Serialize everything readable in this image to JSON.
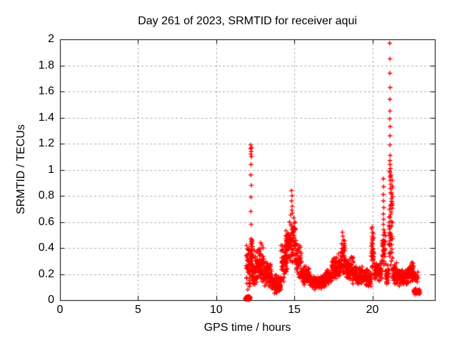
{
  "window": {
    "background": "#ffffff"
  },
  "chart_data": {
    "type": "scatter",
    "title": "Day 261 of 2023, SRMTID for receiver aqui",
    "xlabel": "GPS time / hours",
    "ylabel": "SRMTID / TECUs",
    "xlim": [
      0,
      24
    ],
    "ylim": [
      0,
      2
    ],
    "grid": true,
    "legend": "none",
    "marker": "plus",
    "marker_color": "#ff0000",
    "grid_color": "#b0b0b0",
    "border_color": "#000000",
    "x_ticks": {
      "values": [
        0,
        5,
        10,
        15,
        20
      ],
      "labels": [
        "0",
        "5",
        "10",
        "15",
        "20"
      ]
    },
    "y_ticks": {
      "values": [
        0,
        0.2,
        0.4,
        0.6,
        0.8,
        1,
        1.2,
        1.4,
        1.6,
        1.8,
        2
      ],
      "labels": [
        "0",
        "0.2",
        "0.4",
        "0.6",
        "0.8",
        "1",
        "1.2",
        "1.4",
        "1.6",
        "1.8",
        "2"
      ]
    },
    "data_time_range_hours": [
      11.87,
      23.05
    ],
    "prng_seed": 20230261,
    "spike_points": [
      [
        12.22,
        1.19
      ],
      [
        12.26,
        1.17
      ],
      [
        12.21,
        1.16
      ],
      [
        12.24,
        1.14
      ],
      [
        12.22,
        1.12
      ],
      [
        12.26,
        1.1
      ],
      [
        12.23,
        1.04
      ],
      [
        12.22,
        0.96
      ],
      [
        12.25,
        0.88
      ],
      [
        12.23,
        0.79
      ],
      [
        12.22,
        0.68
      ],
      [
        12.24,
        0.58
      ],
      [
        12.23,
        0.47
      ],
      [
        12.26,
        0.41
      ],
      [
        12.2,
        0.34
      ],
      [
        14.82,
        0.84
      ],
      [
        14.86,
        0.8
      ],
      [
        14.83,
        0.76
      ],
      [
        14.87,
        0.72
      ],
      [
        14.84,
        0.69
      ],
      [
        14.97,
        0.63
      ],
      [
        15.01,
        0.59
      ],
      [
        14.99,
        0.55
      ],
      [
        18.08,
        0.52
      ],
      [
        18.11,
        0.49
      ],
      [
        18.14,
        0.46
      ],
      [
        19.99,
        0.56
      ],
      [
        20.01,
        0.52
      ],
      [
        20.0,
        0.47
      ],
      [
        20.02,
        0.43
      ],
      [
        20.7,
        0.93
      ],
      [
        20.72,
        0.87
      ],
      [
        20.7,
        0.81
      ],
      [
        20.71,
        0.76
      ],
      [
        20.73,
        0.71
      ],
      [
        20.7,
        0.66
      ],
      [
        20.72,
        0.62
      ],
      [
        20.7,
        0.58
      ],
      [
        20.73,
        0.54
      ],
      [
        20.71,
        0.5
      ],
      [
        20.72,
        0.46
      ],
      [
        20.7,
        0.42
      ],
      [
        21.11,
        1.97
      ],
      [
        21.13,
        1.85
      ],
      [
        21.12,
        1.74
      ],
      [
        21.14,
        1.63
      ],
      [
        21.12,
        1.54
      ],
      [
        21.13,
        1.45
      ],
      [
        21.11,
        1.39
      ],
      [
        21.14,
        1.33
      ],
      [
        21.13,
        1.26
      ],
      [
        21.12,
        1.19
      ],
      [
        21.14,
        1.11
      ],
      [
        21.12,
        1.07
      ],
      [
        21.13,
        1.04
      ],
      [
        21.15,
        1.01
      ],
      [
        21.12,
        0.98
      ],
      [
        21.14,
        0.95
      ],
      [
        21.13,
        0.92
      ],
      [
        22.52,
        0.29
      ],
      [
        12.85,
        0.44
      ],
      [
        13.0,
        0.4
      ]
    ],
    "dense_band_segments": [
      [
        11.87,
        12.18,
        0.003,
        0.03,
        45
      ],
      [
        11.92,
        12.18,
        0.06,
        0.46,
        40
      ],
      [
        12.18,
        12.33,
        0.28,
        0.5,
        14
      ],
      [
        12.2,
        12.65,
        0.1,
        0.4,
        65
      ],
      [
        12.65,
        13.05,
        0.12,
        0.43,
        60
      ],
      [
        13.05,
        13.55,
        0.08,
        0.3,
        70
      ],
      [
        13.55,
        14.15,
        0.05,
        0.21,
        80
      ],
      [
        14.15,
        14.55,
        0.12,
        0.47,
        60
      ],
      [
        14.45,
        14.75,
        0.2,
        0.64,
        48
      ],
      [
        14.75,
        15.1,
        0.24,
        0.68,
        55
      ],
      [
        15.1,
        15.45,
        0.14,
        0.44,
        48
      ],
      [
        15.45,
        16.0,
        0.1,
        0.27,
        75
      ],
      [
        16.0,
        16.95,
        0.08,
        0.2,
        120
      ],
      [
        16.95,
        17.4,
        0.1,
        0.25,
        60
      ],
      [
        17.4,
        17.78,
        0.12,
        0.34,
        50
      ],
      [
        17.78,
        18.02,
        0.14,
        0.4,
        35
      ],
      [
        18.02,
        18.28,
        0.18,
        0.5,
        45
      ],
      [
        18.28,
        18.85,
        0.12,
        0.36,
        70
      ],
      [
        18.85,
        19.45,
        0.1,
        0.28,
        75
      ],
      [
        19.45,
        19.92,
        0.1,
        0.25,
        55
      ],
      [
        19.92,
        20.1,
        0.17,
        0.56,
        30
      ],
      [
        20.1,
        20.62,
        0.13,
        0.31,
        60
      ],
      [
        20.62,
        20.84,
        0.22,
        0.55,
        28
      ],
      [
        20.84,
        21.06,
        0.1,
        0.3,
        26
      ],
      [
        21.06,
        21.3,
        0.15,
        1.08,
        60
      ],
      [
        21.3,
        21.58,
        0.1,
        0.3,
        40
      ],
      [
        21.58,
        22.32,
        0.1,
        0.25,
        90
      ],
      [
        22.32,
        22.65,
        0.13,
        0.3,
        40
      ],
      [
        22.55,
        22.95,
        0.12,
        0.22,
        18
      ],
      [
        22.65,
        23.05,
        0.04,
        0.09,
        40
      ]
    ]
  }
}
